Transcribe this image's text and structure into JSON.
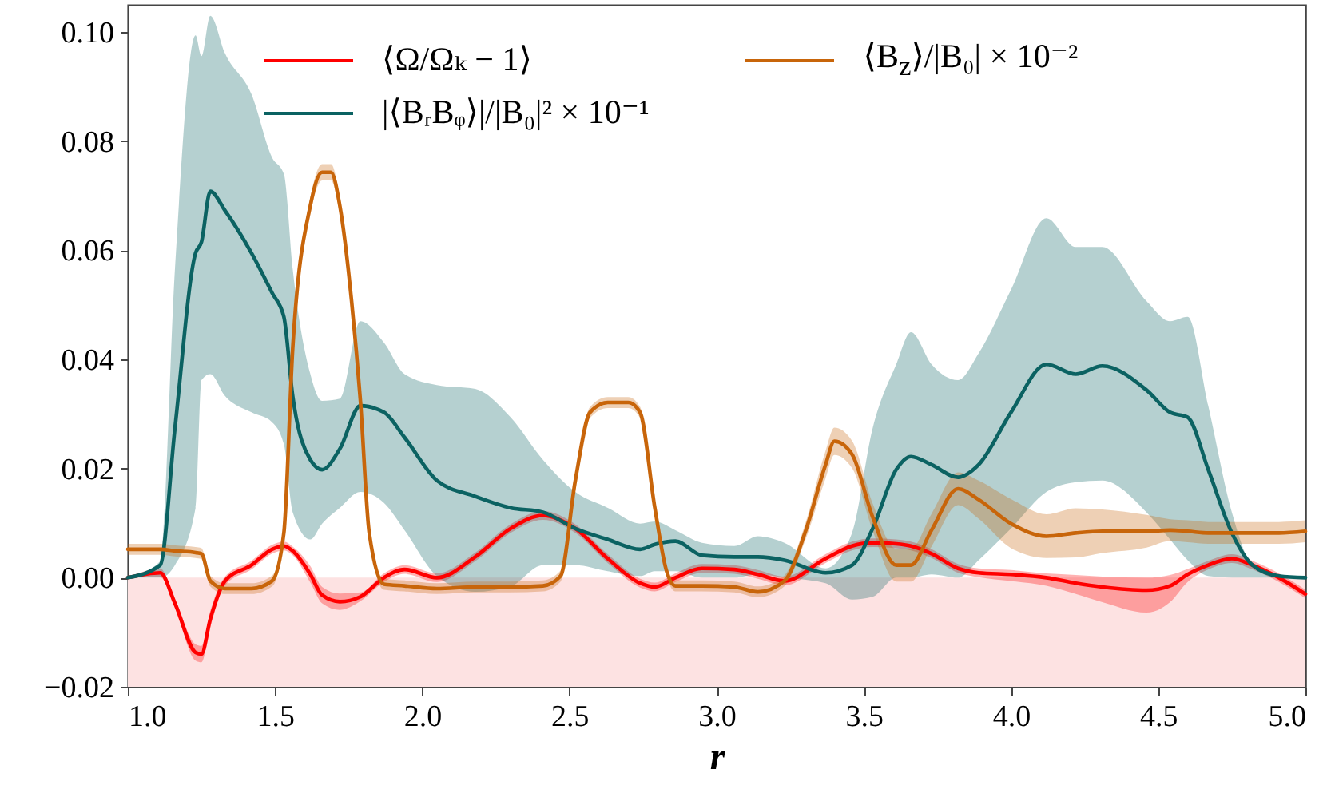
{
  "chart_data": {
    "type": "line",
    "xlabel": "r",
    "xlim": [
      1.0,
      5.0
    ],
    "ylim": [
      -0.02,
      0.105
    ],
    "xticks": [
      {
        "value": 1,
        "label": "1.0"
      },
      {
        "value": 1.5,
        "label": "1.5"
      },
      {
        "value": 2,
        "label": "2.0"
      },
      {
        "value": 2.5,
        "label": "2.5"
      },
      {
        "value": 3,
        "label": "3.0"
      },
      {
        "value": 3.5,
        "label": "3.5"
      },
      {
        "value": 4,
        "label": "4.0"
      },
      {
        "value": 4.5,
        "label": "4.5"
      },
      {
        "value": 5,
        "label": "5.0"
      }
    ],
    "yticks": [
      {
        "value": -0.02,
        "label": "−0.02"
      },
      {
        "value": 0,
        "label": "0.00"
      },
      {
        "value": 0.02,
        "label": "0.02"
      },
      {
        "value": 0.04,
        "label": "0.04"
      },
      {
        "value": 0.06,
        "label": "0.06"
      },
      {
        "value": 0.08,
        "label": "0.08"
      },
      {
        "value": 0.1,
        "label": "0.10"
      }
    ],
    "legend": "top",
    "line_style": "solid",
    "bands": [
      {
        "axis": "y",
        "from": -0.02,
        "to": 0,
        "color": "#fde2e2"
      }
    ],
    "x": [
      1.0,
      1.11,
      1.16,
      1.23,
      1.25,
      1.28,
      1.33,
      1.42,
      1.49,
      1.53,
      1.56,
      1.62,
      1.66,
      1.72,
      1.79,
      1.87,
      1.94,
      2.05,
      2.18,
      2.3,
      2.41,
      2.52,
      2.63,
      2.74,
      2.79,
      2.86,
      2.95,
      3.06,
      3.14,
      3.23,
      3.37,
      3.46,
      3.53,
      3.61,
      3.66,
      3.73,
      3.82,
      3.89,
      4.0,
      4.12,
      4.22,
      4.31,
      4.46,
      4.54,
      4.6,
      4.67,
      4.75,
      4.82,
      4.91,
      5.0
    ],
    "series": [
      {
        "name": "⟨Ω/Ωₖ − 1⟩",
        "color": "#ff0000",
        "values": [
          0,
          0.0009,
          -0.0047,
          -0.0137,
          -0.014,
          -0.0076,
          -0.0006,
          0.0023,
          0.0052,
          0.0058,
          0.0049,
          0.0006,
          -0.0032,
          -0.0044,
          -0.0035,
          0,
          0.0015,
          0,
          0.0038,
          0.009,
          0.0114,
          0.009,
          0.0035,
          -0.001,
          -0.0017,
          0,
          0.0017,
          0.0015,
          0.0006,
          -0.0006,
          0.0035,
          0.0058,
          0.0064,
          0.0062,
          0.0058,
          0.0044,
          0.0017,
          0.0009,
          0.0006,
          0,
          -0.001,
          -0.0017,
          -0.0023,
          -0.0015,
          0.0006,
          0.0023,
          0.0035,
          0.0023,
          0,
          -0.003
        ],
        "lower": [
          0,
          0.0001,
          -0.0055,
          -0.0152,
          -0.0155,
          -0.0091,
          -0.0014,
          0.0015,
          0.0044,
          0.005,
          0.0041,
          -0.0009,
          -0.0047,
          -0.0059,
          -0.0043,
          -0.0008,
          0.0007,
          -0.0008,
          0.003,
          0.0082,
          0.0106,
          0.0082,
          0.0027,
          -0.0018,
          -0.0025,
          -0.0008,
          0.0009,
          0.0007,
          -0.0002,
          -0.0014,
          0.0027,
          0.005,
          0.0056,
          0.0054,
          0.005,
          0.0036,
          0.0009,
          0.0001,
          -0.0006,
          -0.0015,
          -0.003,
          -0.0045,
          -0.0064,
          -0.0045,
          -0.0008,
          0.0015,
          0.0027,
          0.0015,
          -0.0008,
          -0.0038
        ],
        "upper": [
          0,
          0.0017,
          -0.0039,
          -0.0122,
          -0.0125,
          -0.0061,
          0.0002,
          0.0031,
          0.006,
          0.0066,
          0.0057,
          0.0021,
          -0.0017,
          -0.0029,
          -0.0027,
          0.0008,
          0.0023,
          0.0008,
          0.0046,
          0.0098,
          0.0122,
          0.0098,
          0.0043,
          -0.0002,
          -0.0009,
          0.0008,
          0.0025,
          0.0023,
          0.0014,
          0.0002,
          0.0043,
          0.0066,
          0.0072,
          0.007,
          0.0066,
          0.0052,
          0.0025,
          0.0017,
          0.0014,
          0.0008,
          0.0005,
          0.0002,
          0.0,
          0.0005,
          0.0016,
          0.0031,
          0.0043,
          0.0031,
          0.0008,
          -0.0022
        ]
      },
      {
        "name": "|⟨BᵣBᵩ⟩|/|B₀|² × 10⁻¹",
        "color": "#0b6262",
        "values": [
          0,
          0.0023,
          0.0274,
          0.0595,
          0.0615,
          0.0708,
          0.0673,
          0.0595,
          0.0522,
          0.0478,
          0.0333,
          0.0216,
          0.0198,
          0.0236,
          0.0315,
          0.0303,
          0.0257,
          0.0178,
          0.0149,
          0.0128,
          0.012,
          0.009,
          0.007,
          0.0052,
          0.0061,
          0.0067,
          0.0041,
          0.0038,
          0.0038,
          0.0032,
          0.0009,
          0.0023,
          0.009,
          0.0198,
          0.0222,
          0.0207,
          0.0184,
          0.0207,
          0.0303,
          0.0391,
          0.0373,
          0.0388,
          0.0344,
          0.0303,
          0.0294,
          0.0198,
          0.0082,
          0.0023,
          0.0003,
          0
        ],
        "lower": [
          0,
          0,
          0.0023,
          0.0128,
          0.0362,
          0.0373,
          0.0333,
          0.0303,
          0.0285,
          0.0245,
          0.012,
          0.007,
          0.0099,
          0.0128,
          0.0157,
          0.0137,
          0.0087,
          0.0003,
          -0.0026,
          -0.0016,
          0.0023,
          0.0023,
          0.0012,
          0.0003,
          0.0012,
          0.0012,
          0,
          0,
          0.0006,
          0,
          -0.001,
          -0.004,
          -0.0035,
          0,
          0,
          0.0006,
          0,
          0.0032,
          0.009,
          0.0157,
          0.0175,
          0.0178,
          0.012,
          0.007,
          0.0032,
          0.0003,
          0,
          0,
          0,
          0
        ],
        "upper": [
          0,
          0.003,
          0.0566,
          0.0994,
          0.0956,
          0.103,
          0.0961,
          0.0886,
          0.077,
          0.074,
          0.0566,
          0.0373,
          0.0324,
          0.0328,
          0.047,
          0.0431,
          0.0373,
          0.0353,
          0.0346,
          0.0294,
          0.0216,
          0.0157,
          0.0128,
          0.0099,
          0.0103,
          0.0087,
          0.0064,
          0.0058,
          0.0076,
          0.0064,
          0.0017,
          0.0082,
          0.0274,
          0.0391,
          0.045,
          0.0391,
          0.0362,
          0.0411,
          0.0528,
          0.0659,
          0.0606,
          0.0606,
          0.0507,
          0.047,
          0.0478,
          0.0315,
          0.012,
          0.0023,
          0.0003,
          0
        ]
      },
      {
        "name": "⟨B$_{z}$⟩/|B₀| × 10⁻²",
        "color": "#c8650a",
        "x": [
          1.0,
          1.11,
          1.16,
          1.23,
          1.25,
          1.28,
          1.33,
          1.42,
          1.49,
          1.53,
          1.56,
          1.62,
          1.66,
          1.69,
          1.72,
          1.76,
          1.79,
          1.82,
          1.87,
          1.94,
          2.05,
          2.18,
          2.3,
          2.41,
          2.47,
          2.52,
          2.57,
          2.63,
          2.7,
          2.74,
          2.79,
          2.83,
          2.86,
          2.95,
          3.06,
          3.14,
          3.23,
          3.3,
          3.37,
          3.4,
          3.46,
          3.53,
          3.61,
          3.66,
          3.73,
          3.82,
          3.89,
          4.0,
          4.12,
          4.22,
          4.31,
          4.46,
          4.54,
          4.6,
          4.67,
          4.75,
          4.82,
          4.91,
          5.0
        ],
        "values": [
          0.0052,
          0.0052,
          0.0049,
          0.0046,
          0.0044,
          -0.0006,
          -0.002,
          -0.002,
          -0.0006,
          0.0082,
          0.042,
          0.0682,
          0.0743,
          0.0743,
          0.0682,
          0.0507,
          0.0324,
          0.0082,
          -0.0012,
          -0.0015,
          -0.002,
          -0.0017,
          -0.0017,
          -0.0015,
          0.0003,
          0.0178,
          0.0303,
          0.0321,
          0.0321,
          0.0303,
          0.0128,
          0.0012,
          -0.0015,
          -0.0015,
          -0.0017,
          -0.0026,
          -0.0006,
          0.0082,
          0.0207,
          0.025,
          0.0226,
          0.0111,
          0.0023,
          0.0023,
          0.0087,
          0.0163,
          0.0143,
          0.0099,
          0.0076,
          0.0082,
          0.0085,
          0.0085,
          0.0087,
          0.0085,
          0.0082,
          0.0082,
          0.0082,
          0.0082,
          0.0085
        ],
        "lower": [
          0.0042,
          0.0042,
          0.0039,
          0.0036,
          0.0034,
          -0.0016,
          -0.003,
          -0.003,
          -0.0016,
          0.0072,
          0.041,
          0.0667,
          0.0728,
          0.0728,
          0.0667,
          0.0492,
          0.0314,
          0.0072,
          -0.0022,
          -0.0025,
          -0.003,
          -0.0027,
          -0.0027,
          -0.0025,
          -0.0007,
          0.0168,
          0.0293,
          0.0311,
          0.0311,
          0.0293,
          0.0118,
          0.0002,
          -0.0025,
          -0.0025,
          -0.0027,
          -0.0036,
          -0.0016,
          0.0067,
          0.0182,
          0.0225,
          0.0201,
          0.0086,
          -0.0007,
          -0.0007,
          0.0057,
          0.0133,
          0.0108,
          0.0054,
          0.0036,
          0.0037,
          0.0045,
          0.0055,
          0.0067,
          0.0065,
          0.0062,
          0.0062,
          0.0062,
          0.0062,
          0.0065
        ],
        "upper": [
          0.0062,
          0.0062,
          0.0059,
          0.0056,
          0.0054,
          0.0004,
          -0.001,
          -0.001,
          0.0004,
          0.0092,
          0.043,
          0.0697,
          0.0758,
          0.0758,
          0.0697,
          0.0522,
          0.0334,
          0.0092,
          -0.0002,
          -0.0005,
          -0.001,
          -0.0007,
          -0.0007,
          -0.0005,
          0.0013,
          0.0188,
          0.0313,
          0.0331,
          0.0331,
          0.0313,
          0.0138,
          0.0022,
          -0.0005,
          -0.0005,
          -0.0007,
          -0.0016,
          0.0004,
          0.0097,
          0.0232,
          0.0275,
          0.0251,
          0.0136,
          0.0053,
          0.0053,
          0.0117,
          0.0193,
          0.0178,
          0.0144,
          0.0116,
          0.0127,
          0.0125,
          0.0115,
          0.0107,
          0.0105,
          0.0102,
          0.0102,
          0.0102,
          0.0102,
          0.0105
        ]
      }
    ]
  }
}
